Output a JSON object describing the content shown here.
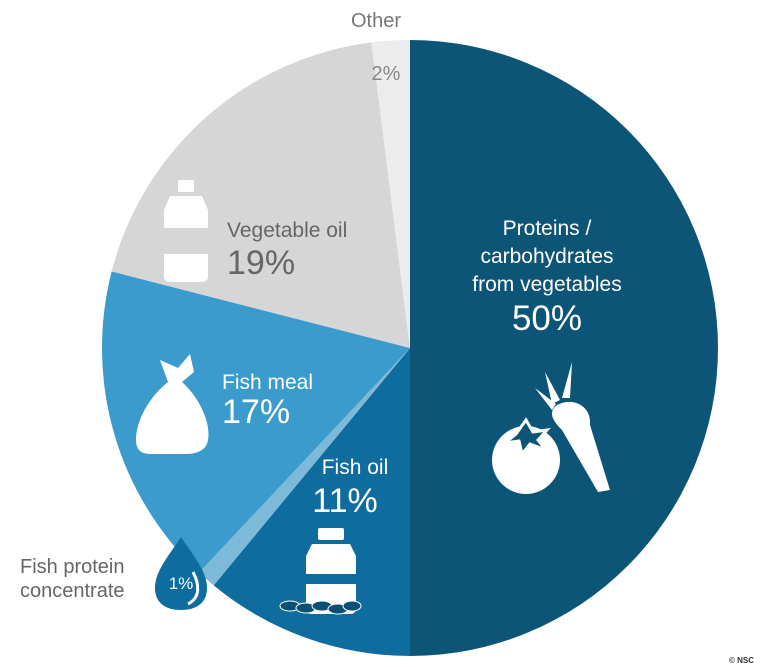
{
  "chart_data": {
    "type": "pie",
    "slices": [
      {
        "label": "Proteins / carbohydrates from vegetables",
        "label_lines": [
          "Proteins /",
          "carbohydrates",
          "from vegetables"
        ],
        "value": 50,
        "value_text": "50%",
        "color": "#0d5577"
      },
      {
        "label": "Fish oil",
        "label_lines": [
          "Fish oil"
        ],
        "value": 11,
        "value_text": "11%",
        "color": "#0e6c9e"
      },
      {
        "label": "Fish protein concentrate",
        "label_lines": [
          "Fish protein",
          "concentrate"
        ],
        "value": 1,
        "value_text": "1%",
        "color": "#7dbad9"
      },
      {
        "label": "Fish meal",
        "label_lines": [
          "Fish meal"
        ],
        "value": 17,
        "value_text": "17%",
        "color": "#3a9bcc"
      },
      {
        "label": "Vegetable oil",
        "label_lines": [
          "Vegetable oil"
        ],
        "value": 19,
        "value_text": "19%",
        "color": "#d6d6d6"
      },
      {
        "label": "Other",
        "label_lines": [
          "Other"
        ],
        "value": 2,
        "value_text": "2%",
        "color": "#ececec"
      }
    ],
    "start": "12 o'clock",
    "direction": "clockwise",
    "credit": "© NSC"
  }
}
